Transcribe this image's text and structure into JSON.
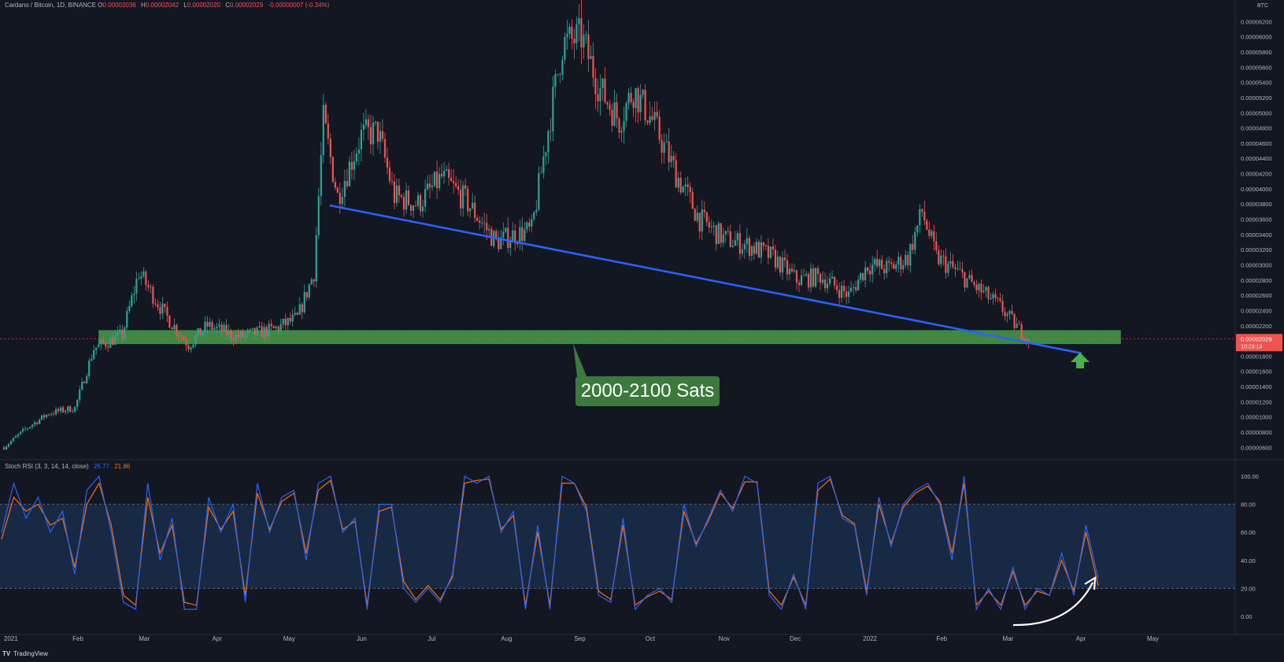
{
  "header": {
    "symbol": "Cardano / Bitcoin, 1D, BINANCE",
    "o_label": "O",
    "o_value": "0.00002036",
    "h_label": "H",
    "h_value": "0.00002042",
    "l_label": "L",
    "l_value": "0.00002020",
    "c_label": "C",
    "c_value": "0.00002029",
    "change": "-0.00000007 (-0.34%)"
  },
  "price_axis": {
    "unit": "BTC",
    "ticks": [
      "0.00006200",
      "0.00006000",
      "0.00005800",
      "0.00005600",
      "0.00005400",
      "0.00005200",
      "0.00005000",
      "0.00004800",
      "0.00004600",
      "0.00004400",
      "0.00004200",
      "0.00004000",
      "0.00003800",
      "0.00003600",
      "0.00003400",
      "0.00003200",
      "0.00003000",
      "0.00002800",
      "0.00002600",
      "0.00002400",
      "0.00002200",
      "0.00001800",
      "0.00001600",
      "0.00001400",
      "0.00001200",
      "0.00001000",
      "0.00000800",
      "0.00000600"
    ],
    "last_price": "0.00002029",
    "countdown": "10:23:13"
  },
  "stoch": {
    "label": "Stoch RSI (3, 3, 14, 14, close)",
    "k_value": "26.77",
    "d_value": "21.86",
    "ticks": [
      "100.00",
      "80.00",
      "60.00",
      "40.00",
      "20.00",
      "0.00"
    ]
  },
  "annotation": {
    "zone_label": "2000-2100 Sats"
  },
  "footer": {
    "logo": "TV",
    "brand": "TradingView"
  },
  "colors": {
    "background": "#131722",
    "up": "#26a69a",
    "down": "#ef5350",
    "trendline": "#2962ff",
    "zone": "#4caf50",
    "stoch_k": "#2962ff",
    "stoch_d": "#ff6d00",
    "stoch_band": "#1e3a5f"
  },
  "chart_data": {
    "type": "candlestick",
    "time_labels": [
      "2021",
      "Feb",
      "Mar",
      "Apr",
      "May",
      "Jun",
      "Jul",
      "Aug",
      "Sep",
      "Oct",
      "Nov",
      "Dec",
      "2022",
      "Feb",
      "Mar",
      "Apr",
      "May"
    ],
    "support_zone": {
      "low": 2e-05,
      "high": 2.1e-05,
      "start": "2021-02",
      "end": "2022-04"
    },
    "trendline": {
      "from": {
        "date": "2021-05-19",
        "price": 3.78e-05
      },
      "to": {
        "date": "2022-04-01",
        "price": 1.84e-05
      }
    },
    "close_path": [
      {
        "date": "2021-01-01",
        "price": 6e-06
      },
      {
        "date": "2021-01-10",
        "price": 8.4e-06
      },
      {
        "date": "2021-01-20",
        "price": 1.05e-05
      },
      {
        "date": "2021-01-31",
        "price": 1.12e-05
      },
      {
        "date": "2021-02-08",
        "price": 1.9e-05
      },
      {
        "date": "2021-02-20",
        "price": 2.08e-05
      },
      {
        "date": "2021-02-27",
        "price": 2.9e-05
      },
      {
        "date": "2021-03-10",
        "price": 2.35e-05
      },
      {
        "date": "2021-03-20",
        "price": 1.95e-05
      },
      {
        "date": "2021-03-28",
        "price": 2.2e-05
      },
      {
        "date": "2021-04-10",
        "price": 2.05e-05
      },
      {
        "date": "2021-04-25",
        "price": 2.15e-05
      },
      {
        "date": "2021-05-05",
        "price": 2.3e-05
      },
      {
        "date": "2021-05-12",
        "price": 2.9e-05
      },
      {
        "date": "2021-05-16",
        "price": 4.9e-05
      },
      {
        "date": "2021-05-22",
        "price": 3.9e-05
      },
      {
        "date": "2021-06-01",
        "price": 4.7e-05
      },
      {
        "date": "2021-06-08",
        "price": 4.75e-05
      },
      {
        "date": "2021-06-15",
        "price": 3.9e-05
      },
      {
        "date": "2021-06-25",
        "price": 3.8e-05
      },
      {
        "date": "2021-07-05",
        "price": 4.15e-05
      },
      {
        "date": "2021-07-15",
        "price": 3.85e-05
      },
      {
        "date": "2021-07-28",
        "price": 3.3e-05
      },
      {
        "date": "2021-08-05",
        "price": 3.4e-05
      },
      {
        "date": "2021-08-12",
        "price": 3.45e-05
      },
      {
        "date": "2021-08-18",
        "price": 4.6e-05
      },
      {
        "date": "2021-08-25",
        "price": 5.9e-05
      },
      {
        "date": "2021-09-02",
        "price": 6e-05
      },
      {
        "date": "2021-09-10",
        "price": 5.3e-05
      },
      {
        "date": "2021-09-18",
        "price": 4.9e-05
      },
      {
        "date": "2021-09-24",
        "price": 5.3e-05
      },
      {
        "date": "2021-10-02",
        "price": 4.9e-05
      },
      {
        "date": "2021-10-12",
        "price": 4.2e-05
      },
      {
        "date": "2021-10-22",
        "price": 3.6e-05
      },
      {
        "date": "2021-11-01",
        "price": 3.35e-05
      },
      {
        "date": "2021-11-12",
        "price": 3.25e-05
      },
      {
        "date": "2021-11-22",
        "price": 3.1e-05
      },
      {
        "date": "2021-12-02",
        "price": 2.8e-05
      },
      {
        "date": "2021-12-12",
        "price": 2.85e-05
      },
      {
        "date": "2021-12-24",
        "price": 2.6e-05
      },
      {
        "date": "2022-01-01",
        "price": 3e-05
      },
      {
        "date": "2022-01-10",
        "price": 2.95e-05
      },
      {
        "date": "2022-01-18",
        "price": 3.1e-05
      },
      {
        "date": "2022-01-24",
        "price": 3.7e-05
      },
      {
        "date": "2022-01-30",
        "price": 3.1e-05
      },
      {
        "date": "2022-02-08",
        "price": 2.9e-05
      },
      {
        "date": "2022-02-18",
        "price": 2.65e-05
      },
      {
        "date": "2022-02-26",
        "price": 2.45e-05
      },
      {
        "date": "2022-03-06",
        "price": 2.15e-05
      },
      {
        "date": "2022-03-10",
        "price": 2.03e-05
      }
    ],
    "stoch_k": [
      60,
      95,
      70,
      85,
      60,
      75,
      30,
      90,
      100,
      60,
      10,
      5,
      95,
      40,
      70,
      5,
      5,
      85,
      60,
      80,
      10,
      95,
      60,
      85,
      90,
      40,
      95,
      100,
      60,
      70,
      5,
      80,
      80,
      20,
      10,
      20,
      10,
      30,
      100,
      95,
      100,
      60,
      75,
      5,
      65,
      5,
      100,
      95,
      75,
      15,
      10,
      70,
      5,
      15,
      20,
      10,
      80,
      50,
      70,
      90,
      75,
      100,
      95,
      15,
      5,
      30,
      5,
      95,
      100,
      70,
      65,
      15,
      85,
      50,
      80,
      90,
      95,
      80,
      40,
      100,
      5,
      20,
      5,
      35,
      5,
      20,
      15,
      45,
      15,
      65,
      26.77
    ],
    "stoch_d": [
      55,
      85,
      75,
      80,
      65,
      70,
      35,
      80,
      95,
      65,
      15,
      8,
      85,
      45,
      65,
      10,
      8,
      78,
      62,
      75,
      15,
      88,
      62,
      82,
      88,
      45,
      90,
      97,
      62,
      68,
      8,
      75,
      78,
      25,
      12,
      22,
      12,
      28,
      95,
      97,
      98,
      62,
      72,
      8,
      60,
      8,
      95,
      95,
      78,
      18,
      12,
      65,
      8,
      14,
      18,
      12,
      75,
      52,
      68,
      88,
      77,
      96,
      96,
      18,
      8,
      28,
      8,
      90,
      98,
      72,
      66,
      18,
      80,
      52,
      78,
      88,
      93,
      82,
      45,
      95,
      8,
      18,
      8,
      32,
      8,
      18,
      15,
      40,
      18,
      60,
      21.86
    ],
    "stoch_ylim": [
      0,
      100
    ],
    "stoch_overbought": 80,
    "stoch_oversold": 20
  }
}
